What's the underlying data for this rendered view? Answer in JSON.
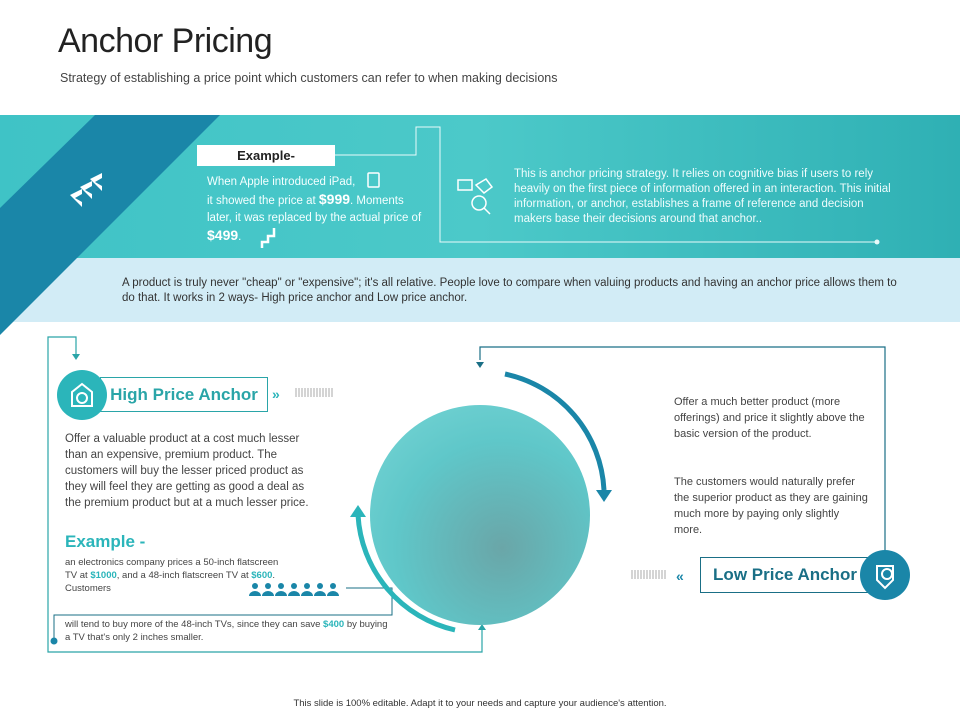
{
  "title": "Anchor Pricing",
  "subtitle": "Strategy of establishing a price point which customers can refer to when making decisions",
  "banner": {
    "example_label": "Example-",
    "example_line1": "When Apple introduced iPad,",
    "example_line2a": "it showed the price at ",
    "price_high": "$999",
    "example_line2b": ". Moments later, it was replaced by the actual price of ",
    "price_actual": "$499",
    "example_end": ".",
    "description": "This is anchor pricing strategy. It relies on cognitive bias if users to rely heavily on the first piece of information offered in an interaction. This initial information, or anchor, establishes a frame of reference and decision makers base their decisions around that anchor..",
    "band_text": "A product is truly never \"cheap\" or \"expensive\"; it's all relative. People love to compare when valuing products and having an anchor price allows them to do that. It works in 2 ways- High price anchor and Low price anchor."
  },
  "high": {
    "label": "High Price Anchor",
    "text": "Offer a valuable product at a cost much lesser than an expensive, premium product. The customers will buy the lesser priced product as they will feel they are getting as good a deal as the premium product but at a much lesser price.",
    "example_heading": "Example -",
    "ex1": "an electronics company prices a 50-inch flatscreen TV at ",
    "p1": "$1000",
    "ex2": ", and a 48-inch flatscreen TV at ",
    "p2": "$600",
    "ex3": ". Customers",
    "ex4": "will tend to buy more of the 48-inch TVs, since they can save ",
    "p3": "$400",
    "ex5": " by buying a TV that's only 2 inches smaller."
  },
  "low": {
    "label": "Low Price Anchor",
    "text1": "Offer a much better product (more offerings) and price it slightly above the basic version of the product.",
    "text2": "The customers would naturally prefer the superior product as they are gaining much more by paying only slightly more."
  },
  "footer": "This slide is 100% editable. Adapt it to your needs and capture your audience's attention.",
  "colors": {
    "teal": "#3fc3c6",
    "dark_blue": "#1a86a8",
    "light_band": "#d2ecf6",
    "accent": "#2bb5ba"
  }
}
